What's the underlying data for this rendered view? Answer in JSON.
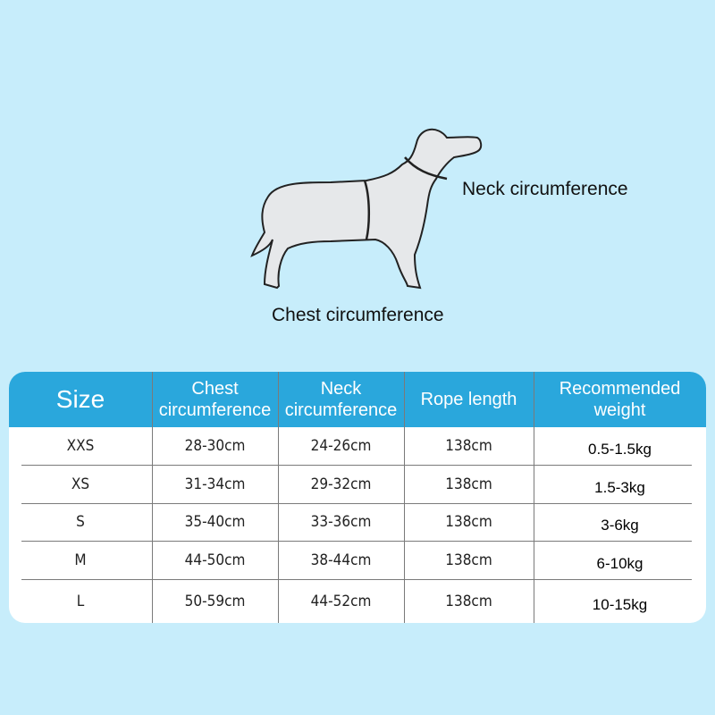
{
  "diagram": {
    "neck_label": "Neck circumference",
    "chest_label": "Chest circumference"
  },
  "colors": {
    "background": "#c7edfb",
    "header": "#2aa7dc",
    "dog_fill": "#e6e8ea"
  },
  "table": {
    "headers": [
      "Size",
      "Chest circumference",
      "Neck circumference",
      "Rope length",
      "Recommended weight"
    ],
    "rows": [
      [
        "XXS",
        "28-30cm",
        "24-26cm",
        "138cm",
        "0.5-1.5kg"
      ],
      [
        "XS",
        "31-34cm",
        "29-32cm",
        "138cm",
        "1.5-3kg"
      ],
      [
        "S",
        "35-40cm",
        "33-36cm",
        "138cm",
        "3-6kg"
      ],
      [
        "M",
        "44-50cm",
        "38-44cm",
        "138cm",
        "6-10kg"
      ],
      [
        "L",
        "50-59cm",
        "44-52cm",
        "138cm",
        "10-15kg"
      ]
    ]
  }
}
